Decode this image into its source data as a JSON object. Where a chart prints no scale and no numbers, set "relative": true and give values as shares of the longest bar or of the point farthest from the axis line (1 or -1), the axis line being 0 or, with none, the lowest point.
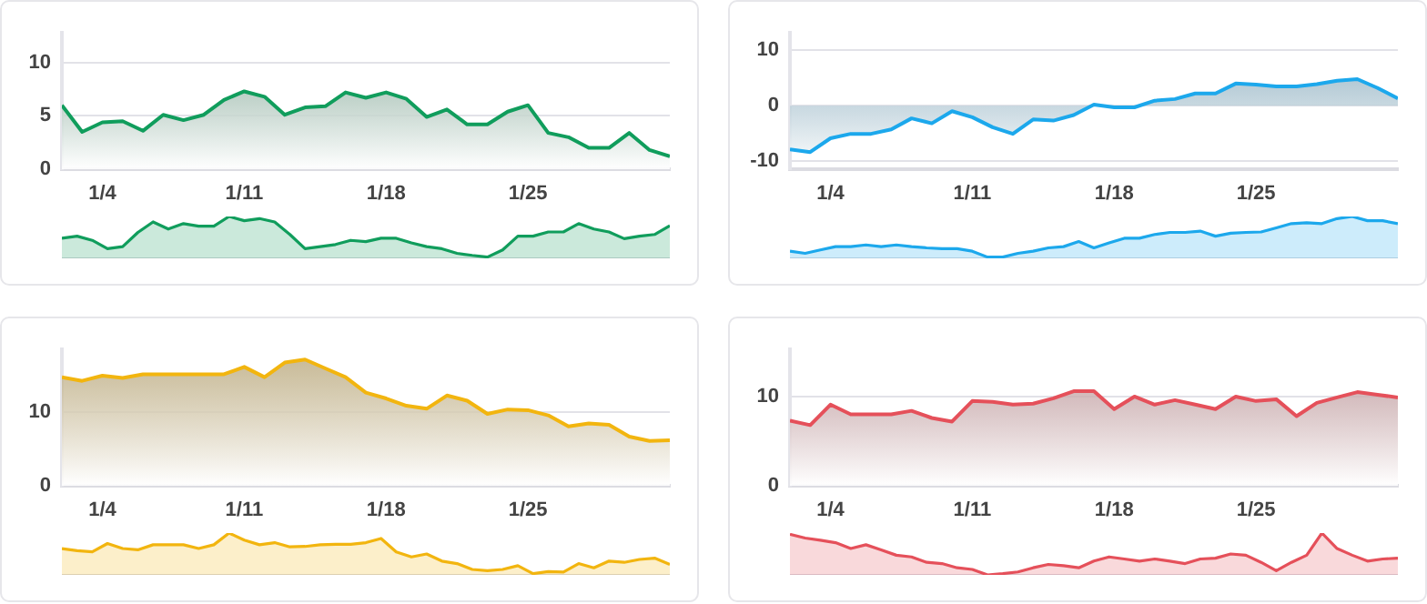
{
  "chart_data": [
    {
      "type": "area",
      "x": [
        "--01-02",
        "--01-03",
        "--01-04",
        "--01-05",
        "--01-06",
        "--01-07",
        "--01-08",
        "--01-09",
        "--01-10",
        "--01-11",
        "--01-12",
        "--01-13",
        "--01-14",
        "--01-15",
        "--01-16",
        "--01-17",
        "--01-18",
        "--01-19",
        "--01-20",
        "--01-21",
        "--01-22",
        "--01-23",
        "--01-24",
        "--01-25",
        "--01-26",
        "--01-27",
        "--01-28",
        "--01-29",
        "--01-30",
        "--01-31",
        "--02-01"
      ],
      "series": [
        {
          "color": "#109d5c",
          "values": [
            6.0,
            3.5,
            4.4,
            4.5,
            3.6,
            5.1,
            4.6,
            5.1,
            6.5,
            7.3,
            6.8,
            5.1,
            5.8,
            5.9,
            7.2,
            6.7,
            7.2,
            6.6,
            4.9,
            5.6,
            4.2,
            4.2,
            5.4,
            6.0,
            3.4,
            3.0,
            2.0,
            2.0,
            3.4,
            1.8,
            1.2
          ]
        }
      ],
      "xlim": [
        "--01-02",
        "--02-01"
      ],
      "xticks": [
        {
          "value": "--01-04",
          "label": "1/4"
        },
        {
          "value": "--01-11",
          "label": "1/11"
        },
        {
          "value": "--01-18",
          "label": "1/18"
        },
        {
          "value": "--01-25",
          "label": "1/25"
        }
      ],
      "ylim": [
        0,
        12.8
      ],
      "yticks": [
        0,
        5,
        10
      ],
      "grid": "y",
      "legend": false
    },
    {
      "type": "area",
      "relative": true,
      "categories": [
        null,
        null,
        null,
        null,
        null,
        null,
        null,
        null,
        null,
        null,
        null,
        null,
        null,
        null,
        null,
        null,
        null,
        null,
        null,
        null,
        null,
        null,
        null,
        null,
        null,
        null,
        null,
        null,
        null,
        null,
        null,
        null,
        null,
        null,
        null,
        null,
        null,
        null,
        null,
        null,
        null
      ],
      "series": [
        {
          "color": "#109d5c",
          "values": [
            0.48,
            0.53,
            0.43,
            0.23,
            0.28,
            0.62,
            0.87,
            0.7,
            0.83,
            0.77,
            0.77,
            1,
            0.9,
            0.95,
            0.87,
            0.57,
            0.23,
            0.28,
            0.33,
            0.43,
            0.4,
            0.48,
            0.48,
            0.37,
            0.28,
            0.23,
            0.12,
            0.07,
            0.03,
            0.2,
            0.53,
            0.53,
            0.63,
            0.63,
            0.83,
            0.7,
            0.63,
            0.47,
            0.53,
            0.57,
            0.78
          ]
        }
      ],
      "legend": false
    },
    {
      "type": "area",
      "x": [
        "--01-02",
        "--01-03",
        "--01-04",
        "--01-05",
        "--01-06",
        "--01-07",
        "--01-08",
        "--01-09",
        "--01-10",
        "--01-11",
        "--01-12",
        "--01-13",
        "--01-14",
        "--01-15",
        "--01-16",
        "--01-17",
        "--01-18",
        "--01-19",
        "--01-20",
        "--01-21",
        "--01-22",
        "--01-23",
        "--01-24",
        "--01-25",
        "--01-26",
        "--01-27",
        "--01-28",
        "--01-29",
        "--01-30",
        "--01-31",
        "--02-01"
      ],
      "series": [
        {
          "color": "#1ca8ec",
          "values": [
            -7.9,
            -8.4,
            -5.9,
            -5.1,
            -5.1,
            -4.3,
            -2.3,
            -3.2,
            -1.0,
            -2.1,
            -3.9,
            -5.1,
            -2.5,
            -2.7,
            -1.7,
            0.2,
            -0.3,
            -0.3,
            0.9,
            1.2,
            2.2,
            2.2,
            4.0,
            3.8,
            3.5,
            3.5,
            3.9,
            4.5,
            4.8,
            3.2,
            1.3
          ]
        }
      ],
      "xlim": [
        "--01-02",
        "--02-01"
      ],
      "xticks": [
        {
          "value": "--01-04",
          "label": "1/4"
        },
        {
          "value": "--01-11",
          "label": "1/11"
        },
        {
          "value": "--01-18",
          "label": "1/18"
        },
        {
          "value": "--01-25",
          "label": "1/25"
        }
      ],
      "ylim": [
        -11.5,
        13.2
      ],
      "yticks": [
        -10,
        0,
        10
      ],
      "grid": "y",
      "legend": false
    },
    {
      "type": "area",
      "relative": true,
      "categories": [
        null,
        null,
        null,
        null,
        null,
        null,
        null,
        null,
        null,
        null,
        null,
        null,
        null,
        null,
        null,
        null,
        null,
        null,
        null,
        null,
        null,
        null,
        null,
        null,
        null,
        null,
        null,
        null,
        null,
        null,
        null,
        null,
        null,
        null,
        null,
        null,
        null,
        null,
        null,
        null,
        null
      ],
      "series": [
        {
          "color": "#1ca8ec",
          "values": [
            0.17,
            0.12,
            0.2,
            0.28,
            0.28,
            0.32,
            0.28,
            0.32,
            0.28,
            0.25,
            0.23,
            0.23,
            0.17,
            0.03,
            0.03,
            0.12,
            0.17,
            0.25,
            0.28,
            0.4,
            0.25,
            0.37,
            0.48,
            0.48,
            0.57,
            0.62,
            0.62,
            0.65,
            0.53,
            0.6,
            0.62,
            0.63,
            0.73,
            0.83,
            0.85,
            0.83,
            0.95,
            1,
            0.9,
            0.9,
            0.83
          ]
        }
      ],
      "legend": false
    },
    {
      "type": "area",
      "x": [
        "--01-02",
        "--01-03",
        "--01-04",
        "--01-05",
        "--01-06",
        "--01-07",
        "--01-08",
        "--01-09",
        "--01-10",
        "--01-11",
        "--01-12",
        "--01-13",
        "--01-14",
        "--01-15",
        "--01-16",
        "--01-17",
        "--01-18",
        "--01-19",
        "--01-20",
        "--01-21",
        "--01-22",
        "--01-23",
        "--01-24",
        "--01-25",
        "--01-26",
        "--01-27",
        "--01-28",
        "--01-29",
        "--01-30",
        "--01-31",
        "--02-01"
      ],
      "series": [
        {
          "color": "#f2b50f",
          "values": [
            14.8,
            14.3,
            15.0,
            14.7,
            15.2,
            15.2,
            15.2,
            15.2,
            15.2,
            16.2,
            14.8,
            16.8,
            17.2,
            16.0,
            14.8,
            12.7,
            11.9,
            10.9,
            10.5,
            12.3,
            11.6,
            9.8,
            10.4,
            10.3,
            9.6,
            8.1,
            8.5,
            8.3,
            6.7,
            6.1,
            6.2
          ]
        }
      ],
      "xlim": [
        "--01-02",
        "--02-01"
      ],
      "xticks": [
        {
          "value": "--01-04",
          "label": "1/4"
        },
        {
          "value": "--01-11",
          "label": "1/11"
        },
        {
          "value": "--01-18",
          "label": "1/18"
        },
        {
          "value": "--01-25",
          "label": "1/25"
        }
      ],
      "ylim": [
        0,
        18.6
      ],
      "yticks": [
        0,
        10
      ],
      "grid": "y",
      "legend": false
    },
    {
      "type": "area",
      "relative": true,
      "categories": [
        null,
        null,
        null,
        null,
        null,
        null,
        null,
        null,
        null,
        null,
        null,
        null,
        null,
        null,
        null,
        null,
        null,
        null,
        null,
        null,
        null,
        null,
        null,
        null,
        null,
        null,
        null,
        null,
        null,
        null,
        null,
        null,
        null,
        null,
        null,
        null,
        null,
        null,
        null,
        null,
        null
      ],
      "series": [
        {
          "color": "#f2b50f",
          "values": [
            0.63,
            0.58,
            0.55,
            0.75,
            0.63,
            0.6,
            0.72,
            0.72,
            0.72,
            0.63,
            0.72,
            1,
            0.83,
            0.72,
            0.77,
            0.67,
            0.68,
            0.72,
            0.73,
            0.73,
            0.77,
            0.87,
            0.55,
            0.43,
            0.5,
            0.33,
            0.27,
            0.13,
            0.1,
            0.13,
            0.22,
            0.03,
            0.08,
            0.07,
            0.27,
            0.17,
            0.33,
            0.3,
            0.37,
            0.4,
            0.25
          ]
        }
      ],
      "legend": false
    },
    {
      "type": "area",
      "x": [
        "--01-02",
        "--01-03",
        "--01-04",
        "--01-05",
        "--01-06",
        "--01-07",
        "--01-08",
        "--01-09",
        "--01-10",
        "--01-11",
        "--01-12",
        "--01-13",
        "--01-14",
        "--01-15",
        "--01-16",
        "--01-17",
        "--01-18",
        "--01-19",
        "--01-20",
        "--01-21",
        "--01-22",
        "--01-23",
        "--01-24",
        "--01-25",
        "--01-26",
        "--01-27",
        "--01-28",
        "--01-29",
        "--01-30",
        "--01-31",
        "--02-01"
      ],
      "series": [
        {
          "color": "#e5505a",
          "values": [
            7.3,
            6.8,
            9.1,
            8.0,
            8.0,
            8.0,
            8.4,
            7.6,
            7.2,
            9.5,
            9.4,
            9.1,
            9.2,
            9.8,
            10.6,
            10.6,
            8.6,
            10.0,
            9.1,
            9.6,
            9.1,
            8.6,
            10.0,
            9.5,
            9.7,
            7.8,
            9.3,
            9.9,
            10.5,
            10.2,
            9.9
          ]
        }
      ],
      "xlim": [
        "--01-02",
        "--02-01"
      ],
      "xticks": [
        {
          "value": "--01-04",
          "label": "1/4"
        },
        {
          "value": "--01-11",
          "label": "1/11"
        },
        {
          "value": "--01-18",
          "label": "1/18"
        },
        {
          "value": "--01-25",
          "label": "1/25"
        }
      ],
      "ylim": [
        0,
        15.3
      ],
      "yticks": [
        0,
        10
      ],
      "grid": "y",
      "legend": false
    },
    {
      "type": "area",
      "relative": true,
      "categories": [
        null,
        null,
        null,
        null,
        null,
        null,
        null,
        null,
        null,
        null,
        null,
        null,
        null,
        null,
        null,
        null,
        null,
        null,
        null,
        null,
        null,
        null,
        null,
        null,
        null,
        null,
        null,
        null,
        null,
        null,
        null,
        null,
        null,
        null,
        null,
        null,
        null,
        null,
        null,
        null,
        null
      ],
      "series": [
        {
          "color": "#e5505a",
          "values": [
            0.97,
            0.88,
            0.83,
            0.77,
            0.63,
            0.72,
            0.6,
            0.47,
            0.43,
            0.3,
            0.27,
            0.17,
            0.13,
            0,
            0.03,
            0.07,
            0.17,
            0.25,
            0.22,
            0.17,
            0.33,
            0.43,
            0.38,
            0.33,
            0.38,
            0.33,
            0.27,
            0.38,
            0.4,
            0.5,
            0.47,
            0.3,
            0.1,
            0.3,
            0.47,
            1,
            0.63,
            0.47,
            0.33,
            0.38,
            0.4
          ]
        }
      ],
      "legend": false
    }
  ]
}
